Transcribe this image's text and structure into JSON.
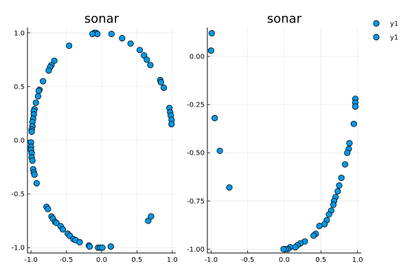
{
  "chart_data": [
    {
      "type": "scatter",
      "title": "sonar",
      "xlabel": "",
      "ylabel": "",
      "xlim": [
        -1.05,
        1.05
      ],
      "ylim": [
        -1.05,
        1.05
      ],
      "xticks": [
        -1.0,
        -0.5,
        0.0,
        0.5,
        1.0
      ],
      "xtick_labels": [
        "-1.0",
        "-0.5",
        "0.0",
        "0.5",
        "1.0"
      ],
      "yticks": [
        -1.0,
        -0.5,
        0.0,
        0.5,
        1.0
      ],
      "ytick_labels": [
        "-1.0",
        "-0.5",
        "0.0",
        "0.5",
        "1.0"
      ],
      "grid": true,
      "legend": "none",
      "series": [
        {
          "color": "#0099e6",
          "points": [
            [
              -0.1,
              1.0
            ],
            [
              -0.08,
              1.0
            ],
            [
              -0.06,
              0.99
            ],
            [
              -0.13,
              0.99
            ],
            [
              0.14,
              0.99
            ],
            [
              0.29,
              0.95
            ],
            [
              0.41,
              0.9
            ],
            [
              0.54,
              0.84
            ],
            [
              0.6,
              0.79
            ],
            [
              0.64,
              0.75
            ],
            [
              0.69,
              0.7
            ],
            [
              0.83,
              0.56
            ],
            [
              0.84,
              0.54
            ],
            [
              0.88,
              0.49
            ],
            [
              -0.46,
              0.88
            ],
            [
              -0.67,
              0.74
            ],
            [
              -0.71,
              0.7
            ],
            [
              -0.73,
              0.68
            ],
            [
              -0.75,
              0.65
            ],
            [
              -0.83,
              0.55
            ],
            [
              -0.88,
              0.47
            ],
            [
              -0.89,
              0.46
            ],
            [
              -0.9,
              0.41
            ],
            [
              -0.93,
              0.35
            ],
            [
              -0.95,
              0.29
            ],
            [
              -0.96,
              0.27
            ],
            [
              -0.96,
              0.24
            ],
            [
              -0.97,
              0.2
            ],
            [
              -0.98,
              0.17
            ],
            [
              -0.98,
              0.13
            ],
            [
              -0.99,
              0.1
            ],
            [
              -0.99,
              0.08
            ],
            [
              -1.0,
              -0.02
            ],
            [
              -1.0,
              -0.06
            ],
            [
              -1.0,
              -0.09
            ],
            [
              -0.99,
              -0.12
            ],
            [
              -0.99,
              -0.16
            ],
            [
              -0.98,
              -0.19
            ],
            [
              -0.97,
              -0.27
            ],
            [
              -0.96,
              -0.3
            ],
            [
              -0.95,
              -0.32
            ],
            [
              -0.92,
              -0.4
            ],
            [
              0.96,
              0.3
            ],
            [
              0.97,
              0.26
            ],
            [
              0.98,
              0.23
            ],
            [
              0.99,
              0.19
            ],
            [
              0.99,
              0.15
            ],
            [
              -0.78,
              -0.62
            ],
            [
              -0.76,
              -0.64
            ],
            [
              -0.71,
              -0.71
            ],
            [
              -0.69,
              -0.73
            ],
            [
              -0.66,
              -0.76
            ],
            [
              -0.64,
              -0.77
            ],
            [
              -0.58,
              -0.8
            ],
            [
              -0.55,
              -0.83
            ],
            [
              -0.48,
              -0.87
            ],
            [
              -0.45,
              -0.89
            ],
            [
              -0.4,
              -0.92
            ],
            [
              -0.37,
              -0.93
            ],
            [
              -0.31,
              -0.95
            ],
            [
              -0.18,
              -0.98
            ],
            [
              -0.17,
              -0.99
            ],
            [
              -0.05,
              -1.0
            ],
            [
              -0.02,
              -1.0
            ],
            [
              0.01,
              -1.0
            ],
            [
              0.13,
              -0.99
            ],
            [
              0.66,
              -0.75
            ],
            [
              0.7,
              -0.71
            ]
          ]
        }
      ]
    },
    {
      "type": "scatter",
      "title": "sonar",
      "xlabel": "",
      "ylabel": "",
      "xlim": [
        -1.05,
        1.05
      ],
      "ylim": [
        -1.02,
        0.15
      ],
      "xticks": [
        -1.0,
        -0.5,
        0.0,
        0.5,
        1.0
      ],
      "xtick_labels": [
        "-1.0",
        "-0.5",
        "0.0",
        "0.5",
        "1.0"
      ],
      "yticks": [
        -1.0,
        -0.75,
        -0.5,
        -0.25,
        0.0
      ],
      "ytick_labels": [
        "-1.00",
        "-0.75",
        "-0.50",
        "-0.25",
        "0.00"
      ],
      "grid": true,
      "legend": "top-right",
      "series": [
        {
          "name": "y1",
          "color": "#0099e6",
          "points": [
            [
              -0.99,
              0.12
            ],
            [
              -1.0,
              0.03
            ],
            [
              -0.95,
              -0.32
            ],
            [
              -0.88,
              -0.49
            ],
            [
              -0.75,
              -0.68
            ],
            [
              0.97,
              -0.22
            ],
            [
              0.97,
              -0.24
            ],
            [
              0.97,
              -0.26
            ],
            [
              0.95,
              -0.35
            ],
            [
              0.89,
              -0.45
            ],
            [
              0.88,
              -0.48
            ],
            [
              0.86,
              -0.5
            ],
            [
              0.83,
              -0.56
            ],
            [
              0.78,
              -0.63
            ],
            [
              0.75,
              -0.67
            ],
            [
              0.73,
              -0.7
            ],
            [
              0.7,
              -0.73
            ],
            [
              0.68,
              -0.75
            ],
            [
              0.67,
              -0.77
            ],
            [
              0.64,
              -0.8
            ],
            [
              0.61,
              -0.82
            ],
            [
              0.58,
              -0.85
            ],
            [
              0.55,
              -0.87
            ],
            [
              0.48,
              -0.88
            ],
            [
              0.43,
              -0.92
            ],
            [
              0.4,
              -0.93
            ],
            [
              0.28,
              -0.96
            ],
            [
              0.22,
              -0.97
            ],
            [
              0.18,
              -0.98
            ],
            [
              0.15,
              -0.99
            ],
            [
              0.08,
              -0.99
            ],
            [
              0.05,
              -1.0
            ],
            [
              0.02,
              -1.0
            ],
            [
              -0.01,
              -1.0
            ]
          ]
        },
        {
          "name": "y1",
          "color": "#0099e6",
          "points": []
        }
      ]
    }
  ]
}
